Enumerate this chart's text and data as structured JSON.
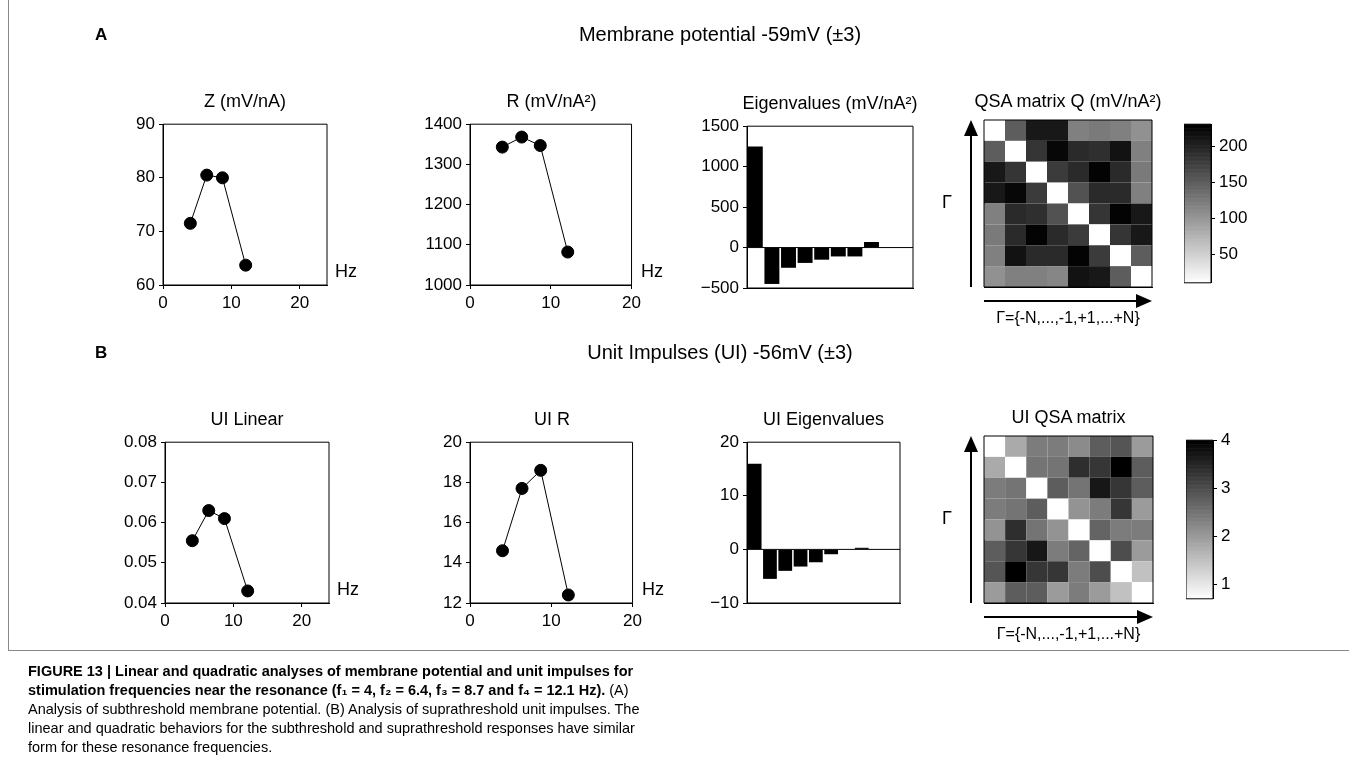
{
  "chart_data": [
    {
      "type": "line",
      "title": "Z (mV/nA)",
      "xlabel": "Hz",
      "x": [
        4,
        6.4,
        8.7,
        12.1
      ],
      "values": [
        71.5,
        80.5,
        80,
        63.7
      ],
      "color": "#000000",
      "marker": "circle",
      "xlim": [
        0,
        24
      ],
      "xticks": [
        0,
        10,
        20
      ],
      "ylim": [
        60,
        90
      ],
      "yticks": [
        60,
        70,
        80,
        90
      ],
      "annotations": [
        "A",
        "Membrane potential -59mV (±3)",
        "FIGURE 13 | Linear and quadratic analyses of membrane potential and unit impulses for stimulation frequencies near the resonance (f₁ = 4, f₂ = 6.4, f₃ = 8.7 and f₄ = 12.1 Hz).",
        "(A) Analysis of subthreshold membrane potential. (B) Analysis of suprathreshold unit impulses. The linear and quadratic behaviors for the subthreshold and suprathreshold responses have similar form for these resonance frequencies."
      ]
    },
    {
      "type": "line",
      "title": "R (mV/nA²)",
      "xlabel": "Hz",
      "x": [
        4,
        6.4,
        8.7,
        12.1
      ],
      "values": [
        1343,
        1368,
        1347,
        1082
      ],
      "color": "#000000",
      "marker": "circle",
      "xlim": [
        0,
        20
      ],
      "xticks": [
        0,
        10,
        20
      ],
      "ylim": [
        1000,
        1400
      ],
      "yticks": [
        1000,
        1100,
        1200,
        1300,
        1400
      ]
    },
    {
      "type": "bar",
      "title": "Eigenvalues (mV/nA²)",
      "categories": [
        null,
        null,
        null,
        null,
        null,
        null,
        null,
        null,
        null,
        null
      ],
      "values": [
        1250,
        -450,
        -250,
        -190,
        -150,
        -110,
        -110,
        70,
        null,
        null
      ],
      "color": "#000000",
      "ylim": [
        -500,
        1500
      ],
      "yticks": [
        {
          "value": -500,
          "label": "−500"
        },
        0,
        500,
        1000,
        1500
      ],
      "ref_lines": [
        {
          "axis": "y",
          "value": 0
        }
      ],
      "tick_labels": "y"
    },
    {
      "type": "heatmap",
      "title": "QSA matrix Q (mV/nA²)",
      "xlabel": "Γ={-N,...,-1,+1,...+N}",
      "ylabel": "Γ",
      "categories": [
        null,
        null,
        null,
        null,
        null,
        null,
        null,
        null
      ],
      "y_categories": [
        null,
        null,
        null,
        null,
        null,
        null,
        null,
        null
      ],
      "cells": [
        [
          10,
          150,
          210,
          210,
          120,
          125,
          120,
          105
        ],
        [
          150,
          10,
          185,
          225,
          195,
          190,
          215,
          120
        ],
        [
          210,
          185,
          10,
          180,
          195,
          228,
          195,
          125
        ],
        [
          210,
          225,
          180,
          10,
          160,
          195,
          195,
          120
        ],
        [
          120,
          195,
          190,
          160,
          10,
          185,
          228,
          210
        ],
        [
          125,
          195,
          228,
          195,
          180,
          10,
          185,
          210
        ],
        [
          120,
          215,
          195,
          195,
          228,
          180,
          10,
          150
        ],
        [
          105,
          120,
          120,
          115,
          215,
          210,
          150,
          10
        ]
      ],
      "clim": [
        10,
        231
      ],
      "cticks": [
        50,
        100,
        150,
        200
      ],
      "tick_labels": false
    },
    {
      "type": "line",
      "title": "UI Linear",
      "xlabel": "Hz",
      "x": [
        4,
        6.4,
        8.7,
        12.1
      ],
      "values": [
        0.0555,
        0.063,
        0.061,
        0.043
      ],
      "color": "#000000",
      "marker": "circle",
      "xlim": [
        0,
        24
      ],
      "xticks": [
        0,
        10,
        20
      ],
      "ylim": [
        0.04,
        0.08
      ],
      "yticks": [
        0.04,
        0.05,
        0.06,
        0.07,
        0.08
      ],
      "annotations": [
        "B",
        "Unit Impulses (UI) -56mV (±3)"
      ]
    },
    {
      "type": "line",
      "title": "UI R",
      "xlabel": "Hz",
      "x": [
        4,
        6.4,
        8.7,
        12.1
      ],
      "values": [
        14.6,
        17.7,
        18.6,
        12.4
      ],
      "color": "#000000",
      "marker": "circle",
      "xlim": [
        0,
        20
      ],
      "xticks": [
        0,
        10,
        20
      ],
      "ylim": [
        12,
        20
      ],
      "yticks": [
        12,
        14,
        16,
        18,
        20
      ]
    },
    {
      "type": "bar",
      "title": "UI Eigenvalues",
      "categories": [
        null,
        null,
        null,
        null,
        null,
        null,
        null,
        null,
        null,
        null
      ],
      "values": [
        16,
        -5.5,
        -4,
        -3.2,
        -2.4,
        -0.9,
        null,
        0.3,
        null,
        null
      ],
      "color": "#000000",
      "ylim": [
        -10,
        20
      ],
      "yticks": [
        {
          "value": -10,
          "label": "−10"
        },
        0,
        10,
        20
      ],
      "ref_lines": [
        {
          "axis": "y",
          "value": 0
        }
      ],
      "tick_labels": "y"
    },
    {
      "type": "heatmap",
      "title": "UI QSA matrix",
      "xlabel": "Γ={-N,...,-1,+1,...+N}",
      "ylabel": "Γ",
      "categories": [
        null,
        null,
        null,
        null,
        null,
        null,
        null,
        null
      ],
      "y_categories": [
        null,
        null,
        null,
        null,
        null,
        null,
        null,
        null
      ],
      "cells": [
        [
          0.7,
          1.8,
          2.4,
          2.4,
          2.2,
          2.8,
          2.9,
          2.0
        ],
        [
          1.8,
          0.7,
          2.5,
          2.5,
          3.4,
          3.3,
          4.0,
          2.8
        ],
        [
          2.4,
          2.5,
          0.7,
          2.8,
          2.5,
          3.7,
          3.3,
          2.8
        ],
        [
          2.4,
          2.5,
          2.8,
          0.7,
          2.1,
          2.4,
          3.3,
          2.0
        ],
        [
          2.1,
          3.4,
          2.5,
          2.1,
          0.7,
          2.7,
          2.4,
          2.4
        ],
        [
          2.8,
          3.3,
          3.7,
          2.4,
          2.7,
          0.7,
          3.0,
          2.0
        ],
        [
          2.9,
          4.0,
          3.3,
          3.3,
          2.4,
          3.0,
          0.7,
          1.5
        ],
        [
          2.0,
          2.8,
          2.8,
          2.0,
          2.4,
          2.0,
          1.5,
          0.7
        ]
      ],
      "clim": [
        0.7,
        4
      ],
      "cticks": [
        1,
        2,
        3,
        4
      ],
      "tick_labels": false
    }
  ]
}
